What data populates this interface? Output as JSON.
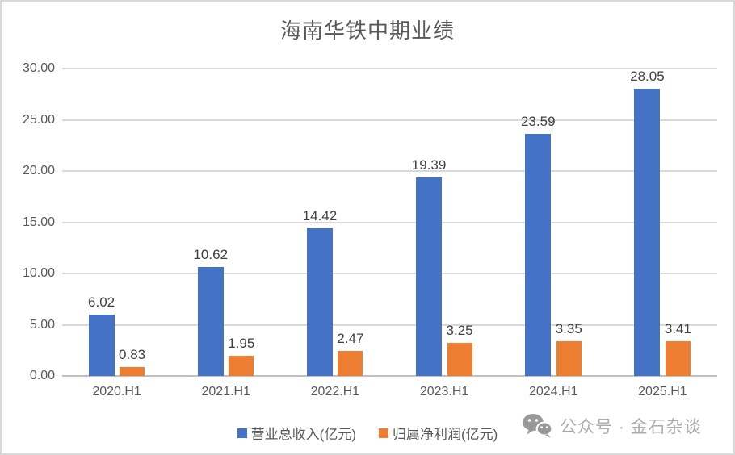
{
  "chart_data": {
    "type": "bar",
    "title": "海南华铁中期业绩",
    "categories": [
      "2020.H1",
      "2021.H1",
      "2022.H1",
      "2023.H1",
      "2024.H1",
      "2025.H1"
    ],
    "series": [
      {
        "name": "营业总收入(亿元)",
        "color": "#4472C4",
        "values": [
          6.02,
          10.62,
          14.42,
          19.39,
          23.59,
          28.05
        ]
      },
      {
        "name": "归属净利润(亿元)",
        "color": "#ED7D31",
        "values": [
          0.83,
          1.95,
          2.47,
          3.25,
          3.35,
          3.41
        ]
      }
    ],
    "y_axis": {
      "min": 0,
      "max": 30,
      "step": 5,
      "tick_labels": [
        "0.00",
        "5.00",
        "10.00",
        "15.00",
        "20.00",
        "25.00",
        "30.00"
      ]
    },
    "grid": true,
    "legend_position": "bottom",
    "data_labels_visible": true
  },
  "colors": {
    "series_revenue": "#4472C4",
    "series_profit": "#ED7D31",
    "gridline": "#D9D9D9",
    "axis_line": "#C0C0C0",
    "tick_text": "#595959",
    "data_label_text": "#404040",
    "title_text": "#595959",
    "watermark_text": "#ACACAC"
  },
  "watermark": {
    "icon": "wechat-icon",
    "text": "公众号 · 金石杂谈"
  }
}
